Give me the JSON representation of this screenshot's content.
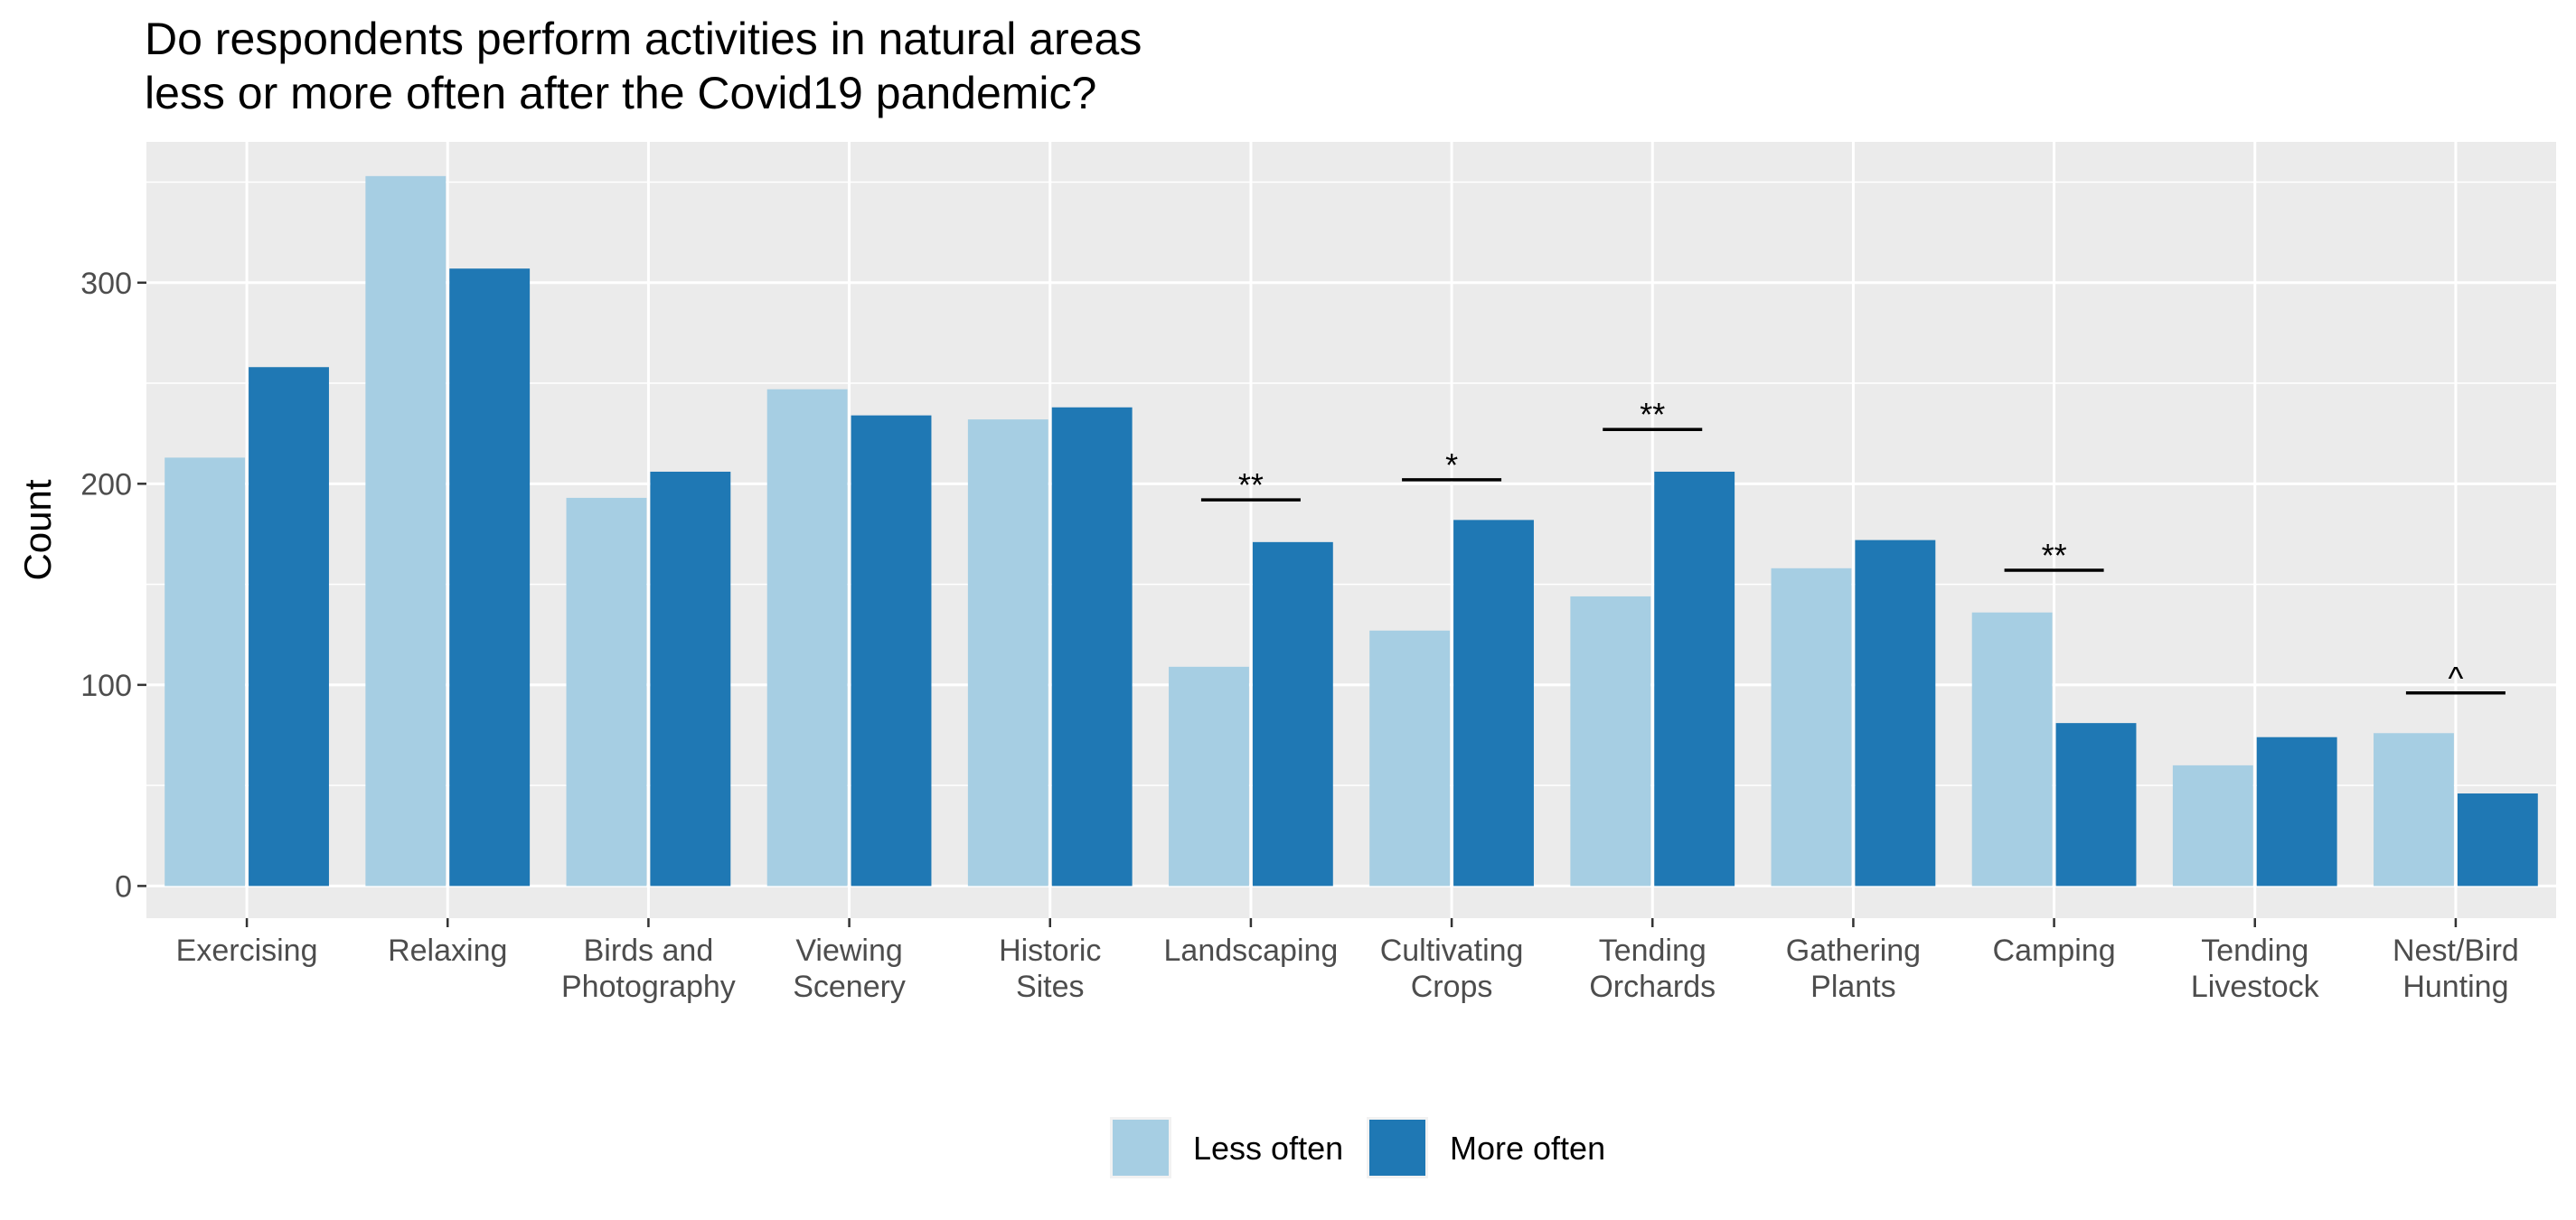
{
  "chart_data": {
    "type": "bar",
    "title_lines": [
      "Do respondents perform activities in natural areas",
      "less or more often after the Covid19 pandemic?"
    ],
    "xlabel": "",
    "ylabel": "Count",
    "ylim": [
      -16,
      370
    ],
    "yticks": [
      0,
      100,
      200,
      300
    ],
    "grid": true,
    "legend_position": "bottom",
    "categories": [
      [
        "Exercising"
      ],
      [
        "Relaxing"
      ],
      [
        "Birds and",
        "Photography"
      ],
      [
        "Viewing",
        "Scenery"
      ],
      [
        "Historic",
        "Sites"
      ],
      [
        "Landscaping"
      ],
      [
        "Cultivating",
        "Crops"
      ],
      [
        "Tending",
        "Orchards"
      ],
      [
        "Gathering",
        "Plants"
      ],
      [
        "Camping"
      ],
      [
        "Tending",
        "Livestock"
      ],
      [
        "Nest/Bird",
        "Hunting"
      ]
    ],
    "series": [
      {
        "name": "Less often",
        "color": "#a6cee3",
        "values": [
          213,
          353,
          193,
          247,
          232,
          109,
          127,
          144,
          158,
          136,
          60,
          76
        ]
      },
      {
        "name": "More often",
        "color": "#1f78b4",
        "values": [
          258,
          307,
          206,
          234,
          238,
          171,
          182,
          206,
          172,
          81,
          74,
          46
        ]
      }
    ],
    "annotations": [
      {
        "category_index": 5,
        "label": "**",
        "y": 192
      },
      {
        "category_index": 6,
        "label": "*",
        "y": 202
      },
      {
        "category_index": 7,
        "label": "**",
        "y": 227
      },
      {
        "category_index": 9,
        "label": "**",
        "y": 157
      },
      {
        "category_index": 11,
        "label": "^",
        "y": 96
      }
    ]
  }
}
